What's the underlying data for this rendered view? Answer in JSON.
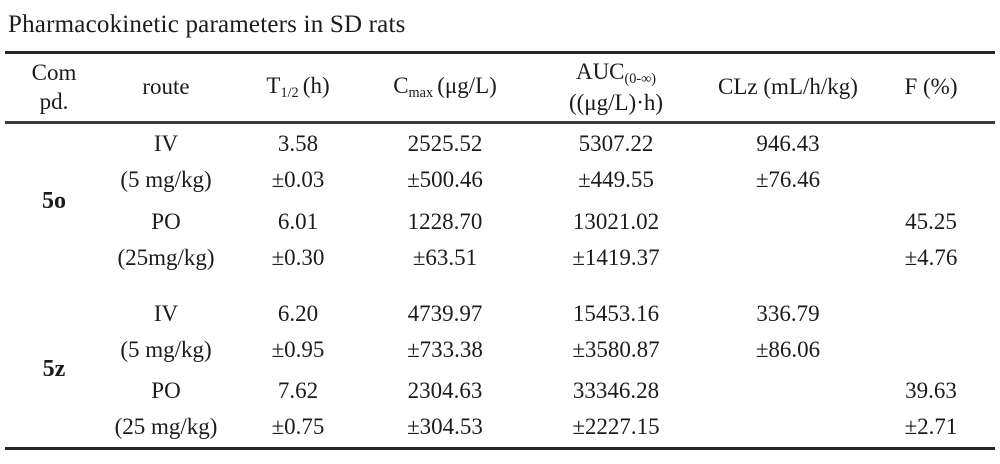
{
  "title": "Pharmacokinetic parameters in SD rats",
  "colors": {
    "text": "#1b1b1b",
    "rule": "#262626",
    "background": "#ffffff"
  },
  "table": {
    "header": {
      "compd_line1": "Com",
      "compd_line2": "pd.",
      "route": "route",
      "t_half": {
        "base": "T",
        "sub": "1/2",
        "unit": "(h)"
      },
      "cmax": {
        "base": "C",
        "sub": "max",
        "unit": "(μg/L)"
      },
      "auc": {
        "base": "AUC",
        "sub": "(0-∞)",
        "unit_line": "((μg/L)·h)"
      },
      "clz": "CLz (mL/h/kg)",
      "f": "F (%)"
    },
    "groups": [
      {
        "compound": "5o",
        "rows": [
          {
            "route": "IV",
            "dose": "(5 mg/kg)",
            "t_half": "3.58",
            "t_half_sd": "±0.03",
            "cmax": "2525.52",
            "cmax_sd": "±500.46",
            "auc": "5307.22",
            "auc_sd": "±449.55",
            "clz": "946.43",
            "clz_sd": "±76.46",
            "f": "",
            "f_sd": ""
          },
          {
            "route": "PO",
            "dose": "(25mg/kg)",
            "t_half": "6.01",
            "t_half_sd": "±0.30",
            "cmax": "1228.70",
            "cmax_sd": "±63.51",
            "auc": "13021.02",
            "auc_sd": "±1419.37",
            "clz": "",
            "clz_sd": "",
            "f": "45.25",
            "f_sd": "±4.76"
          }
        ]
      },
      {
        "compound": "5z",
        "rows": [
          {
            "route": "IV",
            "dose": "(5 mg/kg)",
            "t_half": "6.20",
            "t_half_sd": "±0.95",
            "cmax": "4739.97",
            "cmax_sd": "±733.38",
            "auc": "15453.16",
            "auc_sd": "±3580.87",
            "clz": "336.79",
            "clz_sd": "±86.06",
            "f": "",
            "f_sd": ""
          },
          {
            "route": "PO",
            "dose": "(25 mg/kg)",
            "t_half": "7.62",
            "t_half_sd": "±0.75",
            "cmax": "2304.63",
            "cmax_sd": "±304.53",
            "auc": "33346.28",
            "auc_sd": "±2227.15",
            "clz": "",
            "clz_sd": "",
            "f": "39.63",
            "f_sd": "±2.71"
          }
        ]
      }
    ]
  }
}
